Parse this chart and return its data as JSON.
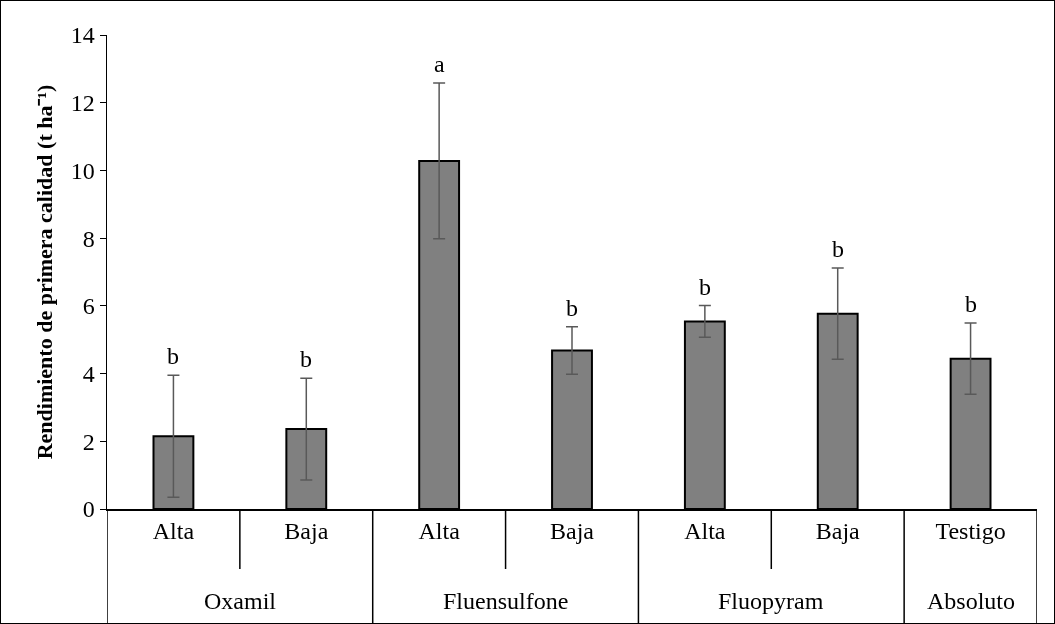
{
  "chart_data": {
    "type": "bar",
    "ylabel": "Rendimiento de primera calidad (t ha⁻¹)",
    "categories": [
      "Alta",
      "Baja",
      "Alta",
      "Baja",
      "Alta",
      "Baja",
      "Testigo"
    ],
    "values": [
      2.15,
      2.36,
      10.28,
      4.68,
      5.54,
      5.77,
      4.44
    ],
    "errors": [
      1.8,
      1.5,
      2.3,
      0.7,
      0.47,
      1.35,
      1.05
    ],
    "color": "#808080",
    "ylim": [
      0,
      14
    ],
    "yticks": [
      0,
      2,
      4,
      6,
      8,
      10,
      12,
      14
    ],
    "grid": false,
    "legend": false,
    "annotations": [
      "Oxamil",
      "Fluensulfone",
      "Fluopyram",
      "Absoluto",
      {
        "text": "b",
        "y": 3.95
      },
      {
        "text": "b",
        "y": 3.86
      },
      {
        "text": "a",
        "y": 12.58
      },
      {
        "text": "b",
        "y": 5.38
      },
      {
        "text": "b",
        "y": 6.01
      },
      {
        "text": "b",
        "y": 7.12
      },
      {
        "text": "b",
        "y": 5.49
      }
    ]
  }
}
